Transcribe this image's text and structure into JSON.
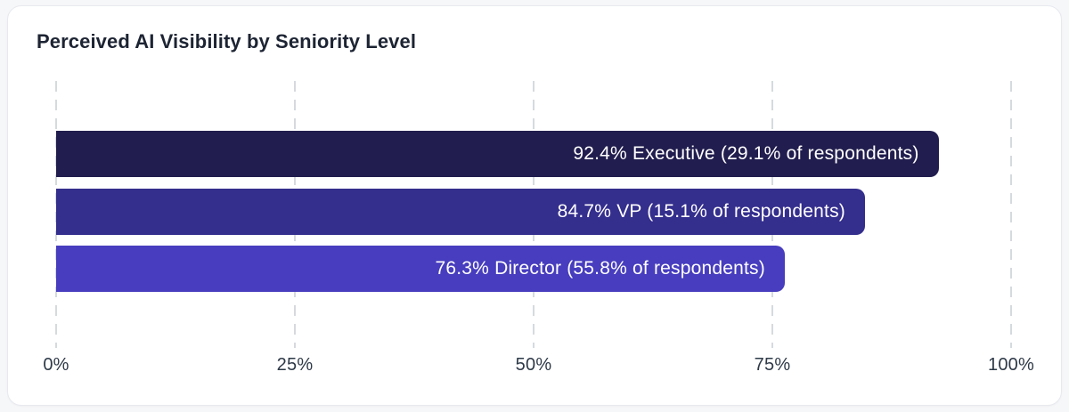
{
  "card": {
    "title": "Perceived AI Visibility by Seniority Level"
  },
  "chart_data": {
    "type": "bar",
    "orientation": "horizontal",
    "title": "Perceived AI Visibility by Seniority Level",
    "xlabel": "",
    "ylabel": "",
    "xlim": [
      0,
      100
    ],
    "grid": "vertical-dashed",
    "legend": "none",
    "categories": [
      "Executive",
      "VP",
      "Director"
    ],
    "values": [
      92.4,
      84.7,
      76.3
    ],
    "respondent_shares": [
      29.1,
      15.1,
      55.8
    ],
    "bars": [
      {
        "category": "Executive",
        "value": 92.4,
        "respondents_pct": 29.1,
        "label": "92.4% Executive (29.1% of respondents)",
        "color": "#211d4e"
      },
      {
        "category": "VP",
        "value": 84.7,
        "respondents_pct": 15.1,
        "label": "84.7% VP (15.1% of respondents)",
        "color": "#342e8d"
      },
      {
        "category": "Director",
        "value": 76.3,
        "respondents_pct": 55.8,
        "label": "76.3% Director (55.8% of respondents)",
        "color": "#473dbe"
      }
    ],
    "x_ticks": [
      {
        "label": "0%",
        "value": 0
      },
      {
        "label": "25%",
        "value": 25
      },
      {
        "label": "50%",
        "value": 50
      },
      {
        "label": "75%",
        "value": 75
      },
      {
        "label": "100%",
        "value": 100
      }
    ],
    "colors": {
      "gridline": "#d5dade",
      "bar_label_text": "#ffffff",
      "axis_label_text": "#2e3947",
      "title_text": "#1d2433",
      "card_background": "#ffffff",
      "card_border": "#e7e9ee",
      "page_background": "#f6f7f9"
    }
  }
}
